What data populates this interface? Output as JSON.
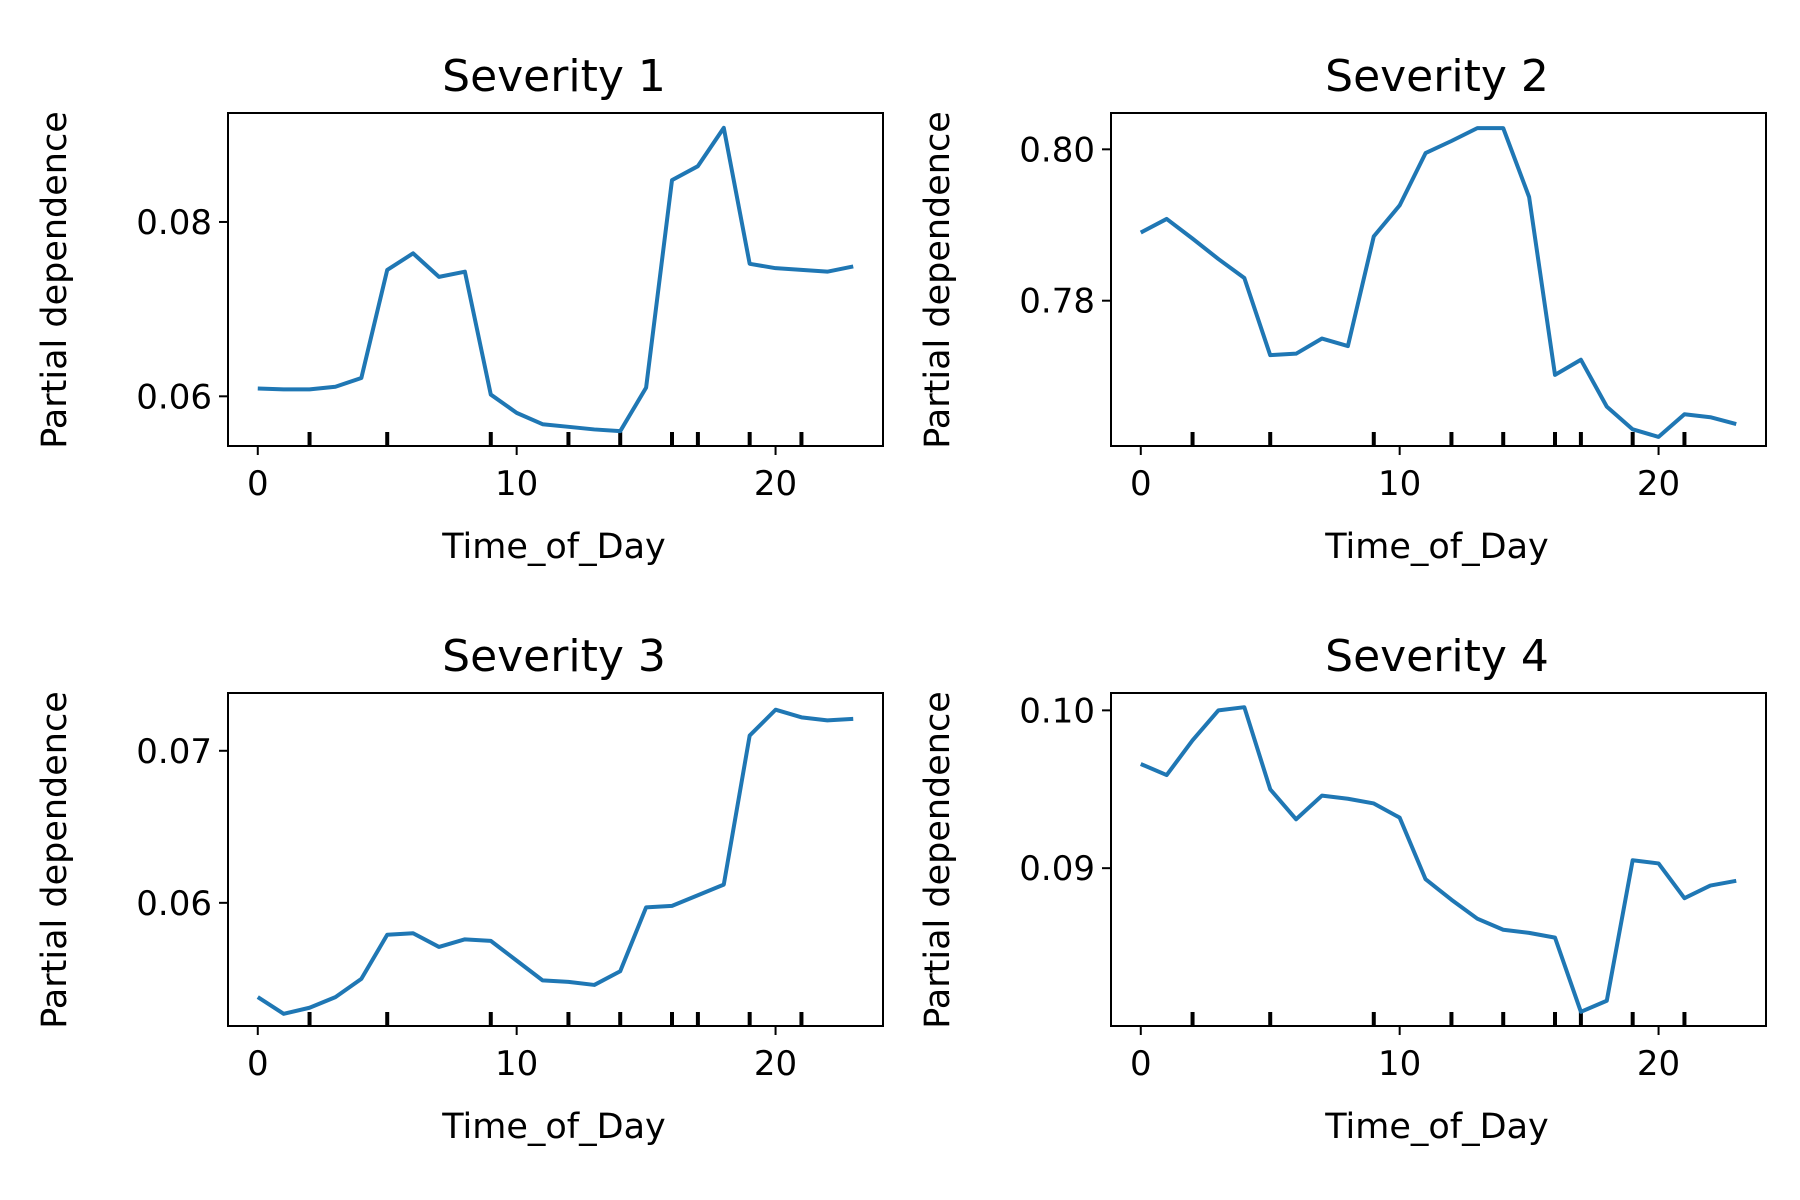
{
  "colors": {
    "line": "#1f77b4",
    "axes": "#000000",
    "background": "#ffffff"
  },
  "chart_data": [
    {
      "type": "line",
      "title": "Severity 1",
      "xlabel": "Time_of_Day",
      "ylabel": "Partial dependence",
      "xlim": [
        -1.15,
        24.15
      ],
      "ylim": [
        0.0543,
        0.0925
      ],
      "xticks": [
        0,
        10,
        20
      ],
      "xtick_labels": [
        "0",
        "10",
        "20"
      ],
      "yticks": [
        0.06,
        0.08
      ],
      "ytick_labels": [
        "0.06",
        "0.08"
      ],
      "rug_x": [
        2,
        5,
        9,
        12,
        14,
        16,
        17,
        19,
        21
      ],
      "grid": false,
      "series": [
        {
          "x": [
            0,
            1,
            2,
            3,
            4,
            5,
            6,
            7,
            8,
            9,
            10,
            11,
            12,
            13,
            14,
            15,
            16,
            17,
            18,
            19,
            20,
            21,
            22,
            23
          ],
          "values": [
            0.0609,
            0.0608,
            0.0608,
            0.0611,
            0.0621,
            0.0745,
            0.0764,
            0.0737,
            0.0743,
            0.0602,
            0.0581,
            0.0568,
            0.0565,
            0.0562,
            0.056,
            0.061,
            0.0848,
            0.0864,
            0.0908,
            0.0752,
            0.0747,
            0.0745,
            0.0743,
            0.0749
          ]
        }
      ]
    },
    {
      "type": "line",
      "title": "Severity 2",
      "xlabel": "Time_of_Day",
      "ylabel": "Partial dependence",
      "xlim": [
        -1.15,
        24.15
      ],
      "ylim": [
        0.7608,
        0.8048
      ],
      "xticks": [
        0,
        10,
        20
      ],
      "xtick_labels": [
        "0",
        "10",
        "20"
      ],
      "yticks": [
        0.78,
        0.8
      ],
      "ytick_labels": [
        "0.78",
        "0.80"
      ],
      "rug_x": [
        2,
        5,
        9,
        12,
        14,
        16,
        17,
        19,
        21
      ],
      "grid": false,
      "series": [
        {
          "x": [
            0,
            1,
            2,
            3,
            4,
            5,
            6,
            7,
            8,
            9,
            10,
            11,
            12,
            13,
            14,
            15,
            16,
            17,
            18,
            19,
            20,
            21,
            22,
            23
          ],
          "values": [
            0.789,
            0.7908,
            0.7882,
            0.7855,
            0.783,
            0.7728,
            0.773,
            0.775,
            0.774,
            0.7885,
            0.7926,
            0.7995,
            0.8011,
            0.8028,
            0.8028,
            0.7937,
            0.7702,
            0.7722,
            0.766,
            0.763,
            0.762,
            0.765,
            0.7646,
            0.7637
          ]
        }
      ]
    },
    {
      "type": "line",
      "title": "Severity 3",
      "xlabel": "Time_of_Day",
      "ylabel": "Partial dependence",
      "xlim": [
        -1.15,
        24.15
      ],
      "ylim": [
        0.0519,
        0.0738
      ],
      "xticks": [
        0,
        10,
        20
      ],
      "xtick_labels": [
        "0",
        "10",
        "20"
      ],
      "yticks": [
        0.06,
        0.07
      ],
      "ytick_labels": [
        "0.06",
        "0.07"
      ],
      "rug_x": [
        2,
        5,
        9,
        12,
        14,
        16,
        17,
        19,
        21
      ],
      "grid": false,
      "series": [
        {
          "x": [
            0,
            1,
            2,
            3,
            4,
            5,
            6,
            7,
            8,
            9,
            10,
            11,
            12,
            13,
            14,
            15,
            16,
            17,
            18,
            19,
            20,
            21,
            22,
            23
          ],
          "values": [
            0.0538,
            0.0527,
            0.0531,
            0.0538,
            0.055,
            0.0579,
            0.058,
            0.0571,
            0.0576,
            0.0575,
            0.0562,
            0.0549,
            0.0548,
            0.0546,
            0.0555,
            0.0597,
            0.0598,
            0.0605,
            0.0612,
            0.071,
            0.0727,
            0.0722,
            0.072,
            0.0721
          ]
        }
      ]
    },
    {
      "type": "line",
      "title": "Severity 4",
      "xlabel": "Time_of_Day",
      "ylabel": "Partial dependence",
      "xlim": [
        -1.15,
        24.15
      ],
      "ylim": [
        0.08,
        0.1011
      ],
      "xticks": [
        0,
        10,
        20
      ],
      "xtick_labels": [
        "0",
        "10",
        "20"
      ],
      "yticks": [
        0.09,
        0.1
      ],
      "ytick_labels": [
        "0.09",
        "0.10"
      ],
      "rug_x": [
        2,
        5,
        9,
        12,
        14,
        16,
        17,
        19,
        21
      ],
      "grid": false,
      "series": [
        {
          "x": [
            0,
            1,
            2,
            3,
            4,
            5,
            6,
            7,
            8,
            9,
            10,
            11,
            12,
            13,
            14,
            15,
            16,
            17,
            18,
            19,
            20,
            21,
            22,
            23
          ],
          "values": [
            0.0966,
            0.0959,
            0.0981,
            0.1,
            0.1002,
            0.095,
            0.0931,
            0.0946,
            0.0944,
            0.0941,
            0.0932,
            0.0893,
            0.088,
            0.0868,
            0.0861,
            0.0859,
            0.0856,
            0.0809,
            0.0816,
            0.0905,
            0.0903,
            0.0881,
            0.0889,
            0.0892
          ]
        }
      ]
    }
  ]
}
